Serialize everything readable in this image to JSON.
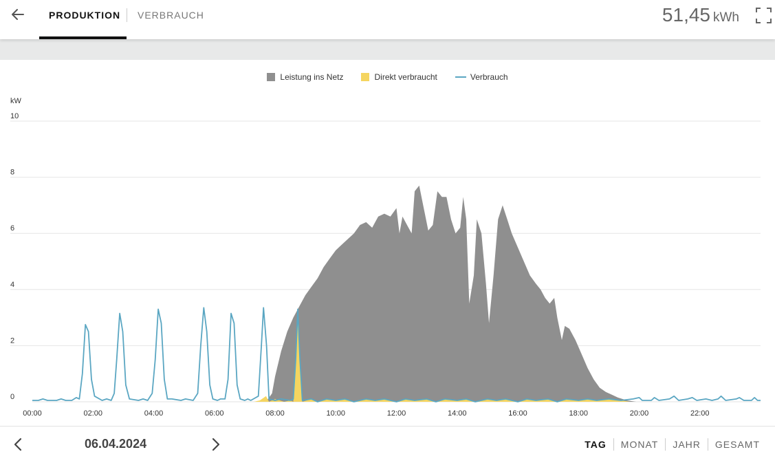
{
  "header": {
    "tabs": [
      {
        "label": "PRODUKTION",
        "active": true
      },
      {
        "label": "VERBRAUCH",
        "active": false
      }
    ],
    "total_value": "51,45",
    "total_unit": "kWh",
    "icons": [
      "arrow-left-icon",
      "fullscreen-icon"
    ]
  },
  "chart": {
    "unit": "kW",
    "legend": [
      {
        "label": "Leistung ins Netz",
        "color": "#8f8f8f"
      },
      {
        "label": "Direkt verbraucht",
        "color": "#f5d560"
      },
      {
        "label": "Verbrauch",
        "color": "#5aa6c2"
      }
    ]
  },
  "chart_data": {
    "type": "area",
    "xlabel": "",
    "ylabel": "kW",
    "ylim": [
      0,
      10
    ],
    "xlim": [
      "00:00",
      "24:00"
    ],
    "x_ticks": [
      "00:00",
      "02:00",
      "04:00",
      "06:00",
      "08:00",
      "10:00",
      "12:00",
      "14:00",
      "16:00",
      "18:00",
      "20:00",
      "22:00"
    ],
    "y_ticks": [
      0,
      2,
      4,
      6,
      8,
      10
    ],
    "grid": true,
    "legend_position": "top-center",
    "series": [
      {
        "name": "Leistung ins Netz",
        "type": "area",
        "color": "#8f8f8f",
        "points": [
          [
            7.7,
            0.0
          ],
          [
            7.9,
            0.3
          ],
          [
            8.0,
            0.9
          ],
          [
            8.2,
            1.8
          ],
          [
            8.4,
            2.5
          ],
          [
            8.6,
            3.0
          ],
          [
            8.8,
            3.4
          ],
          [
            9.0,
            3.8
          ],
          [
            9.2,
            4.1
          ],
          [
            9.4,
            4.4
          ],
          [
            9.6,
            4.8
          ],
          [
            9.8,
            5.1
          ],
          [
            10.0,
            5.4
          ],
          [
            10.2,
            5.6
          ],
          [
            10.4,
            5.8
          ],
          [
            10.6,
            6.0
          ],
          [
            10.8,
            6.3
          ],
          [
            11.0,
            6.4
          ],
          [
            11.2,
            6.2
          ],
          [
            11.4,
            6.6
          ],
          [
            11.6,
            6.7
          ],
          [
            11.8,
            6.6
          ],
          [
            12.0,
            6.9
          ],
          [
            12.1,
            6.0
          ],
          [
            12.2,
            6.6
          ],
          [
            12.35,
            6.3
          ],
          [
            12.5,
            6.0
          ],
          [
            12.6,
            7.5
          ],
          [
            12.75,
            7.7
          ],
          [
            12.9,
            6.9
          ],
          [
            13.05,
            6.1
          ],
          [
            13.2,
            6.3
          ],
          [
            13.35,
            7.5
          ],
          [
            13.5,
            7.3
          ],
          [
            13.65,
            7.3
          ],
          [
            13.8,
            6.5
          ],
          [
            13.95,
            6.0
          ],
          [
            14.1,
            6.2
          ],
          [
            14.2,
            7.3
          ],
          [
            14.3,
            6.5
          ],
          [
            14.4,
            3.5
          ],
          [
            14.55,
            4.5
          ],
          [
            14.65,
            6.5
          ],
          [
            14.8,
            6.0
          ],
          [
            14.95,
            4.2
          ],
          [
            15.05,
            2.8
          ],
          [
            15.2,
            4.5
          ],
          [
            15.35,
            6.5
          ],
          [
            15.5,
            7.0
          ],
          [
            15.65,
            6.5
          ],
          [
            15.8,
            6.0
          ],
          [
            16.0,
            5.5
          ],
          [
            16.2,
            5.0
          ],
          [
            16.4,
            4.5
          ],
          [
            16.6,
            4.2
          ],
          [
            16.75,
            4.0
          ],
          [
            16.9,
            3.7
          ],
          [
            17.05,
            3.5
          ],
          [
            17.2,
            3.7
          ],
          [
            17.3,
            3.0
          ],
          [
            17.45,
            2.2
          ],
          [
            17.55,
            2.7
          ],
          [
            17.7,
            2.6
          ],
          [
            17.9,
            2.2
          ],
          [
            18.1,
            1.7
          ],
          [
            18.3,
            1.2
          ],
          [
            18.5,
            0.8
          ],
          [
            18.7,
            0.5
          ],
          [
            18.9,
            0.35
          ],
          [
            19.1,
            0.25
          ],
          [
            19.3,
            0.15
          ],
          [
            19.6,
            0.05
          ],
          [
            19.9,
            0.0
          ]
        ]
      },
      {
        "name": "Direkt verbraucht",
        "type": "area",
        "color": "#f5d560",
        "points": [
          [
            7.3,
            0.0
          ],
          [
            7.5,
            0.05
          ],
          [
            7.7,
            0.2
          ],
          [
            7.8,
            0.0
          ],
          [
            8.0,
            0.1
          ],
          [
            8.3,
            0.0
          ],
          [
            8.5,
            0.05
          ],
          [
            8.6,
            0.0
          ],
          [
            8.68,
            1.5
          ],
          [
            8.75,
            3.3
          ],
          [
            8.82,
            1.5
          ],
          [
            8.9,
            0.0
          ],
          [
            9.2,
            0.1
          ],
          [
            9.4,
            0.0
          ],
          [
            9.7,
            0.1
          ],
          [
            10.0,
            0.05
          ],
          [
            10.3,
            0.1
          ],
          [
            10.6,
            0.0
          ],
          [
            11.0,
            0.1
          ],
          [
            11.3,
            0.05
          ],
          [
            11.6,
            0.1
          ],
          [
            12.0,
            0.0
          ],
          [
            12.3,
            0.1
          ],
          [
            12.6,
            0.05
          ],
          [
            13.0,
            0.1
          ],
          [
            13.3,
            0.0
          ],
          [
            13.6,
            0.1
          ],
          [
            14.0,
            0.05
          ],
          [
            14.3,
            0.1
          ],
          [
            14.6,
            0.0
          ],
          [
            15.0,
            0.1
          ],
          [
            15.3,
            0.05
          ],
          [
            15.6,
            0.1
          ],
          [
            16.0,
            0.0
          ],
          [
            16.3,
            0.1
          ],
          [
            16.6,
            0.05
          ],
          [
            17.0,
            0.1
          ],
          [
            17.3,
            0.0
          ],
          [
            17.6,
            0.1
          ],
          [
            18.0,
            0.05
          ],
          [
            18.3,
            0.1
          ],
          [
            18.6,
            0.05
          ],
          [
            19.0,
            0.1
          ],
          [
            19.4,
            0.05
          ],
          [
            19.7,
            0.0
          ]
        ]
      },
      {
        "name": "Verbrauch",
        "type": "line",
        "color": "#5aa6c2",
        "points": [
          [
            0.0,
            0.05
          ],
          [
            0.2,
            0.05
          ],
          [
            0.35,
            0.1
          ],
          [
            0.5,
            0.05
          ],
          [
            0.8,
            0.05
          ],
          [
            0.95,
            0.1
          ],
          [
            1.1,
            0.05
          ],
          [
            1.3,
            0.05
          ],
          [
            1.45,
            0.15
          ],
          [
            1.55,
            0.1
          ],
          [
            1.65,
            1.0
          ],
          [
            1.75,
            2.75
          ],
          [
            1.85,
            2.5
          ],
          [
            1.95,
            0.8
          ],
          [
            2.05,
            0.2
          ],
          [
            2.3,
            0.05
          ],
          [
            2.45,
            0.1
          ],
          [
            2.6,
            0.05
          ],
          [
            2.7,
            0.3
          ],
          [
            2.78,
            1.5
          ],
          [
            2.88,
            3.15
          ],
          [
            2.98,
            2.5
          ],
          [
            3.08,
            0.6
          ],
          [
            3.2,
            0.1
          ],
          [
            3.5,
            0.05
          ],
          [
            3.65,
            0.1
          ],
          [
            3.8,
            0.05
          ],
          [
            3.95,
            0.3
          ],
          [
            4.05,
            1.5
          ],
          [
            4.15,
            3.3
          ],
          [
            4.25,
            2.8
          ],
          [
            4.35,
            0.8
          ],
          [
            4.45,
            0.1
          ],
          [
            4.6,
            0.1
          ],
          [
            4.9,
            0.05
          ],
          [
            5.05,
            0.1
          ],
          [
            5.3,
            0.05
          ],
          [
            5.45,
            0.3
          ],
          [
            5.55,
            2.0
          ],
          [
            5.65,
            3.35
          ],
          [
            5.75,
            2.5
          ],
          [
            5.85,
            0.6
          ],
          [
            5.95,
            0.1
          ],
          [
            6.1,
            0.05
          ],
          [
            6.2,
            0.1
          ],
          [
            6.35,
            0.1
          ],
          [
            6.45,
            0.8
          ],
          [
            6.55,
            3.15
          ],
          [
            6.65,
            2.8
          ],
          [
            6.75,
            0.6
          ],
          [
            6.85,
            0.1
          ],
          [
            7.0,
            0.05
          ],
          [
            7.1,
            0.1
          ],
          [
            7.2,
            0.05
          ],
          [
            7.45,
            0.2
          ],
          [
            7.55,
            2.0
          ],
          [
            7.62,
            3.35
          ],
          [
            7.72,
            2.0
          ],
          [
            7.8,
            0.1
          ],
          [
            8.0,
            0.05
          ],
          [
            8.2,
            0.1
          ],
          [
            8.5,
            0.05
          ],
          [
            8.6,
            0.1
          ],
          [
            8.68,
            1.5
          ],
          [
            8.75,
            3.3
          ],
          [
            8.82,
            1.5
          ],
          [
            8.9,
            0.05
          ],
          [
            9.2,
            0.1
          ],
          [
            9.4,
            0.0
          ],
          [
            9.7,
            0.1
          ],
          [
            10.0,
            0.05
          ],
          [
            10.3,
            0.1
          ],
          [
            10.6,
            0.0
          ],
          [
            11.0,
            0.1
          ],
          [
            11.3,
            0.05
          ],
          [
            11.6,
            0.1
          ],
          [
            12.0,
            0.0
          ],
          [
            12.3,
            0.1
          ],
          [
            12.6,
            0.05
          ],
          [
            13.0,
            0.1
          ],
          [
            13.3,
            0.0
          ],
          [
            13.6,
            0.1
          ],
          [
            14.0,
            0.05
          ],
          [
            14.3,
            0.1
          ],
          [
            14.6,
            0.0
          ],
          [
            15.0,
            0.1
          ],
          [
            15.3,
            0.05
          ],
          [
            15.6,
            0.1
          ],
          [
            16.0,
            0.0
          ],
          [
            16.3,
            0.1
          ],
          [
            16.6,
            0.05
          ],
          [
            17.0,
            0.1
          ],
          [
            17.3,
            0.0
          ],
          [
            17.6,
            0.1
          ],
          [
            18.0,
            0.05
          ],
          [
            18.3,
            0.1
          ],
          [
            18.6,
            0.05
          ],
          [
            19.0,
            0.1
          ],
          [
            19.4,
            0.05
          ],
          [
            19.8,
            0.1
          ],
          [
            20.0,
            0.15
          ],
          [
            20.1,
            0.05
          ],
          [
            20.4,
            0.05
          ],
          [
            20.5,
            0.15
          ],
          [
            20.65,
            0.05
          ],
          [
            21.0,
            0.1
          ],
          [
            21.15,
            0.2
          ],
          [
            21.3,
            0.05
          ],
          [
            21.6,
            0.1
          ],
          [
            21.75,
            0.15
          ],
          [
            21.9,
            0.05
          ],
          [
            22.2,
            0.1
          ],
          [
            22.4,
            0.05
          ],
          [
            22.6,
            0.1
          ],
          [
            22.7,
            0.2
          ],
          [
            22.85,
            0.05
          ],
          [
            23.2,
            0.1
          ],
          [
            23.3,
            0.15
          ],
          [
            23.45,
            0.05
          ],
          [
            23.7,
            0.05
          ],
          [
            23.8,
            0.15
          ],
          [
            23.9,
            0.05
          ],
          [
            24.0,
            0.05
          ]
        ]
      }
    ]
  },
  "footer": {
    "date": "06.04.2024",
    "icons": [
      "chevron-left-icon",
      "chevron-right-icon"
    ],
    "period_tabs": [
      {
        "label": "TAG",
        "active": true
      },
      {
        "label": "MONAT",
        "active": false
      },
      {
        "label": "JAHR",
        "active": false
      },
      {
        "label": "GESAMT",
        "active": false
      }
    ]
  }
}
